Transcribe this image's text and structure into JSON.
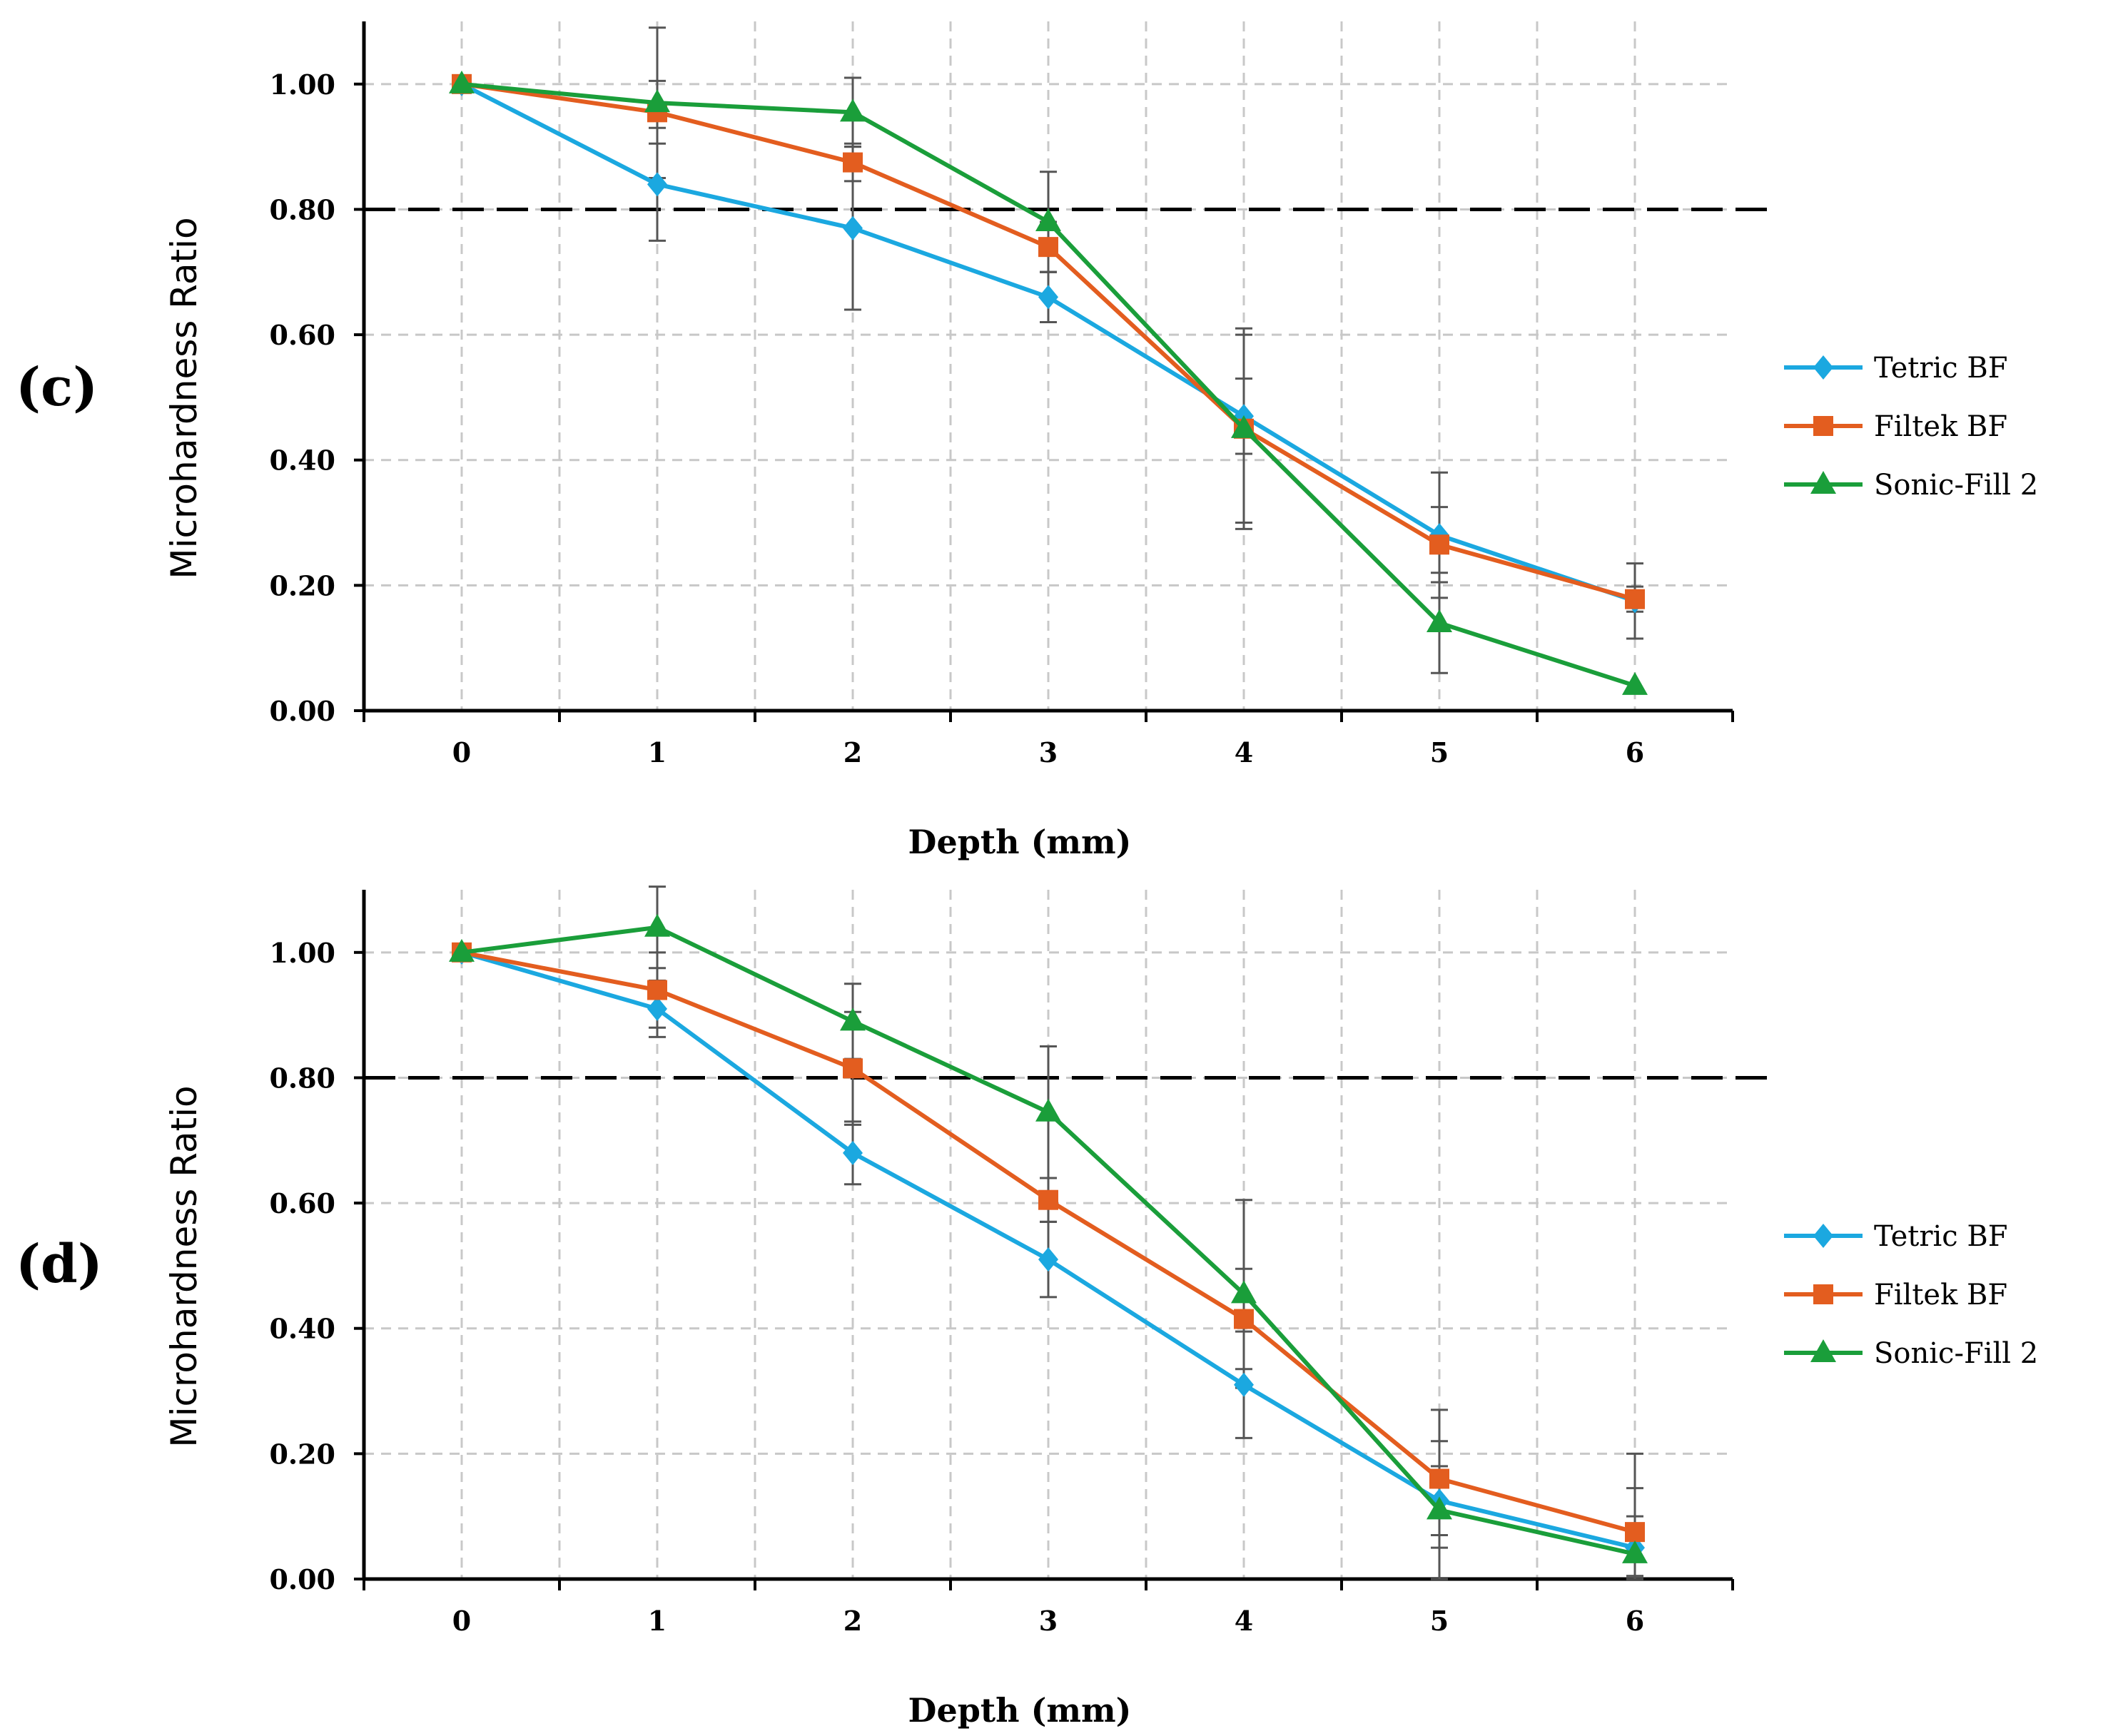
{
  "chart_data": [
    {
      "panel_label": "(c)",
      "type": "line",
      "title": "",
      "xlabel": "Depth (mm)",
      "ylabel": "Microhardness Ratio",
      "x": [
        0,
        1,
        2,
        3,
        4,
        5,
        6
      ],
      "x_tick_labels": [
        "0",
        "1",
        "2",
        "3",
        "4",
        "5",
        "6"
      ],
      "xlim": [
        -0.5,
        6.5
      ],
      "ylim": [
        0,
        1.1
      ],
      "y_tick_labels": [
        "0.00",
        "0.20",
        "0.40",
        "0.60",
        "0.80",
        "1.00"
      ],
      "y_ticks": [
        0,
        0.2,
        0.4,
        0.6,
        0.8,
        1.0
      ],
      "grid": true,
      "reference_line": {
        "y": 0.8,
        "style": "dashed",
        "color": "#000000"
      },
      "legend_position": "right",
      "series": [
        {
          "name": "Tetric BF",
          "color": "#1ba8e0",
          "marker": "diamond",
          "values": [
            1.0,
            0.84,
            0.77,
            0.66,
            0.47,
            0.28,
            0.175
          ],
          "error": [
            0,
            0.09,
            0.13,
            0.04,
            0.06,
            0.1,
            0.06
          ]
        },
        {
          "name": "Filtek BF",
          "color": "#e35d1f",
          "marker": "square",
          "values": [
            1.0,
            0.955,
            0.875,
            0.74,
            0.45,
            0.265,
            0.178
          ],
          "error": [
            0,
            0.05,
            0.03,
            0.04,
            0.16,
            0.06,
            0.02
          ]
        },
        {
          "name": "Sonic-Fill 2",
          "color": "#1a9e3a",
          "marker": "triangle",
          "values": [
            1.0,
            0.97,
            0.955,
            0.78,
            0.45,
            0.14,
            0.04
          ],
          "error": [
            0,
            0.12,
            0.055,
            0.08,
            0.15,
            0.08,
            0.0
          ]
        }
      ]
    },
    {
      "panel_label": "(d)",
      "type": "line",
      "title": "",
      "xlabel": "Depth (mm)",
      "ylabel": "Microhardness Ratio",
      "x": [
        0,
        1,
        2,
        3,
        4,
        5,
        6
      ],
      "x_tick_labels": [
        "0",
        "1",
        "2",
        "3",
        "4",
        "5",
        "6"
      ],
      "xlim": [
        -0.5,
        6.5
      ],
      "ylim": [
        0,
        1.1
      ],
      "y_tick_labels": [
        "0.00",
        "0.20",
        "0.40",
        "0.60",
        "0.80",
        "1.00"
      ],
      "y_ticks": [
        0,
        0.2,
        0.4,
        0.6,
        0.8,
        1.0
      ],
      "grid": true,
      "reference_line": {
        "y": 0.8,
        "style": "dashed",
        "color": "#000000"
      },
      "legend_position": "right",
      "series": [
        {
          "name": "Tetric BF",
          "color": "#1ba8e0",
          "marker": "diamond",
          "values": [
            1.0,
            0.91,
            0.68,
            0.51,
            0.31,
            0.125,
            0.05
          ],
          "error": [
            0,
            0.045,
            0.05,
            0.06,
            0.085,
            0.055,
            0.05
          ]
        },
        {
          "name": "Filtek BF",
          "color": "#e35d1f",
          "marker": "square",
          "values": [
            1.0,
            0.94,
            0.815,
            0.605,
            0.415,
            0.16,
            0.075
          ],
          "error": [
            0,
            0.06,
            0.09,
            0.035,
            0.08,
            0.11,
            0.07
          ]
        },
        {
          "name": "Sonic-Fill 2",
          "color": "#1a9e3a",
          "marker": "triangle",
          "values": [
            1.0,
            1.04,
            0.89,
            0.745,
            0.455,
            0.11,
            0.04
          ],
          "error": [
            0,
            0.065,
            0.06,
            0.105,
            0.15,
            0.11,
            0.16
          ]
        }
      ]
    }
  ]
}
